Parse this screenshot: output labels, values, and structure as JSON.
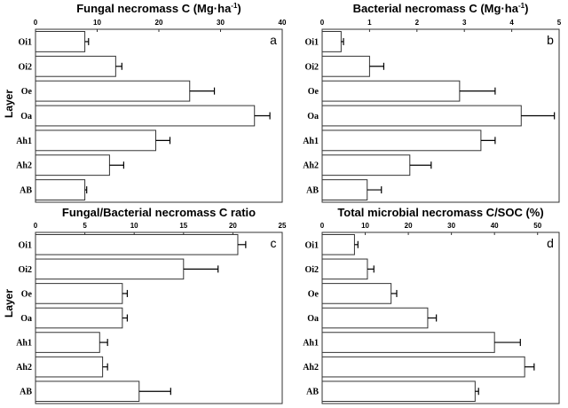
{
  "y_axis_label": "Layer",
  "chart_data": [
    {
      "type": "bar",
      "orientation": "horizontal",
      "title": "Fungal necromass C (Mg·ha-1)",
      "title_main": "Fungal necromass C (Mg·ha",
      "title_sup": "-1",
      "title_end": ")",
      "panel_label": "a",
      "categories": [
        "Oi1",
        "Oi2",
        "Oe",
        "Oa",
        "Ah1",
        "Ah2",
        "AB"
      ],
      "values": [
        8.0,
        13.0,
        25.0,
        35.5,
        19.5,
        12.0,
        8.0
      ],
      "errors": [
        0.6,
        1.0,
        4.0,
        2.5,
        2.3,
        2.3,
        0.3
      ],
      "xlim": [
        0,
        40
      ],
      "xticks": [
        0,
        10,
        20,
        30,
        40
      ]
    },
    {
      "type": "bar",
      "orientation": "horizontal",
      "title": "Bacterial necromass C (Mg·ha-1)",
      "title_main": "Bacterial necromass C (Mg·ha",
      "title_sup": "-1",
      "title_end": ")",
      "panel_label": "b",
      "categories": [
        "Oi1",
        "Oi2",
        "Oe",
        "Oa",
        "Ah1",
        "Ah2",
        "AB"
      ],
      "values": [
        0.4,
        1.0,
        2.9,
        4.2,
        3.35,
        1.85,
        0.95
      ],
      "errors": [
        0.05,
        0.3,
        0.75,
        0.7,
        0.3,
        0.45,
        0.3
      ],
      "xlim": [
        0,
        5
      ],
      "xticks": [
        0,
        1,
        2,
        3,
        4,
        5
      ]
    },
    {
      "type": "bar",
      "orientation": "horizontal",
      "title": "Fungal/Bacterial necromass C ratio",
      "title_main": "Fungal/Bacterial necromass C ratio",
      "title_sup": "",
      "title_end": "",
      "panel_label": "c",
      "categories": [
        "Oi1",
        "Oi2",
        "Oe",
        "Oa",
        "Ah1",
        "Ah2",
        "AB"
      ],
      "values": [
        20.5,
        15.0,
        8.8,
        8.8,
        6.5,
        6.8,
        10.5
      ],
      "errors": [
        0.8,
        3.5,
        0.5,
        0.5,
        0.8,
        0.5,
        3.2
      ],
      "xlim": [
        0,
        25
      ],
      "xticks": [
        0,
        5,
        10,
        15,
        20,
        25
      ]
    },
    {
      "type": "bar",
      "orientation": "horizontal",
      "title": "Total microbial necromass C/SOC (%)",
      "title_main": "Total microbial necromass C/SOC (%)",
      "title_sup": "",
      "title_end": "",
      "panel_label": "d",
      "categories": [
        "Oi1",
        "Oi2",
        "Oe",
        "Oa",
        "Ah1",
        "Ah2",
        "AB"
      ],
      "values": [
        7.5,
        10.5,
        16.0,
        24.5,
        40.0,
        47.0,
        35.5
      ],
      "errors": [
        0.8,
        1.5,
        1.3,
        2.0,
        6.0,
        2.2,
        0.8
      ],
      "xlim": [
        0,
        55
      ],
      "xticks": [
        0,
        10,
        20,
        30,
        40,
        50
      ]
    }
  ]
}
